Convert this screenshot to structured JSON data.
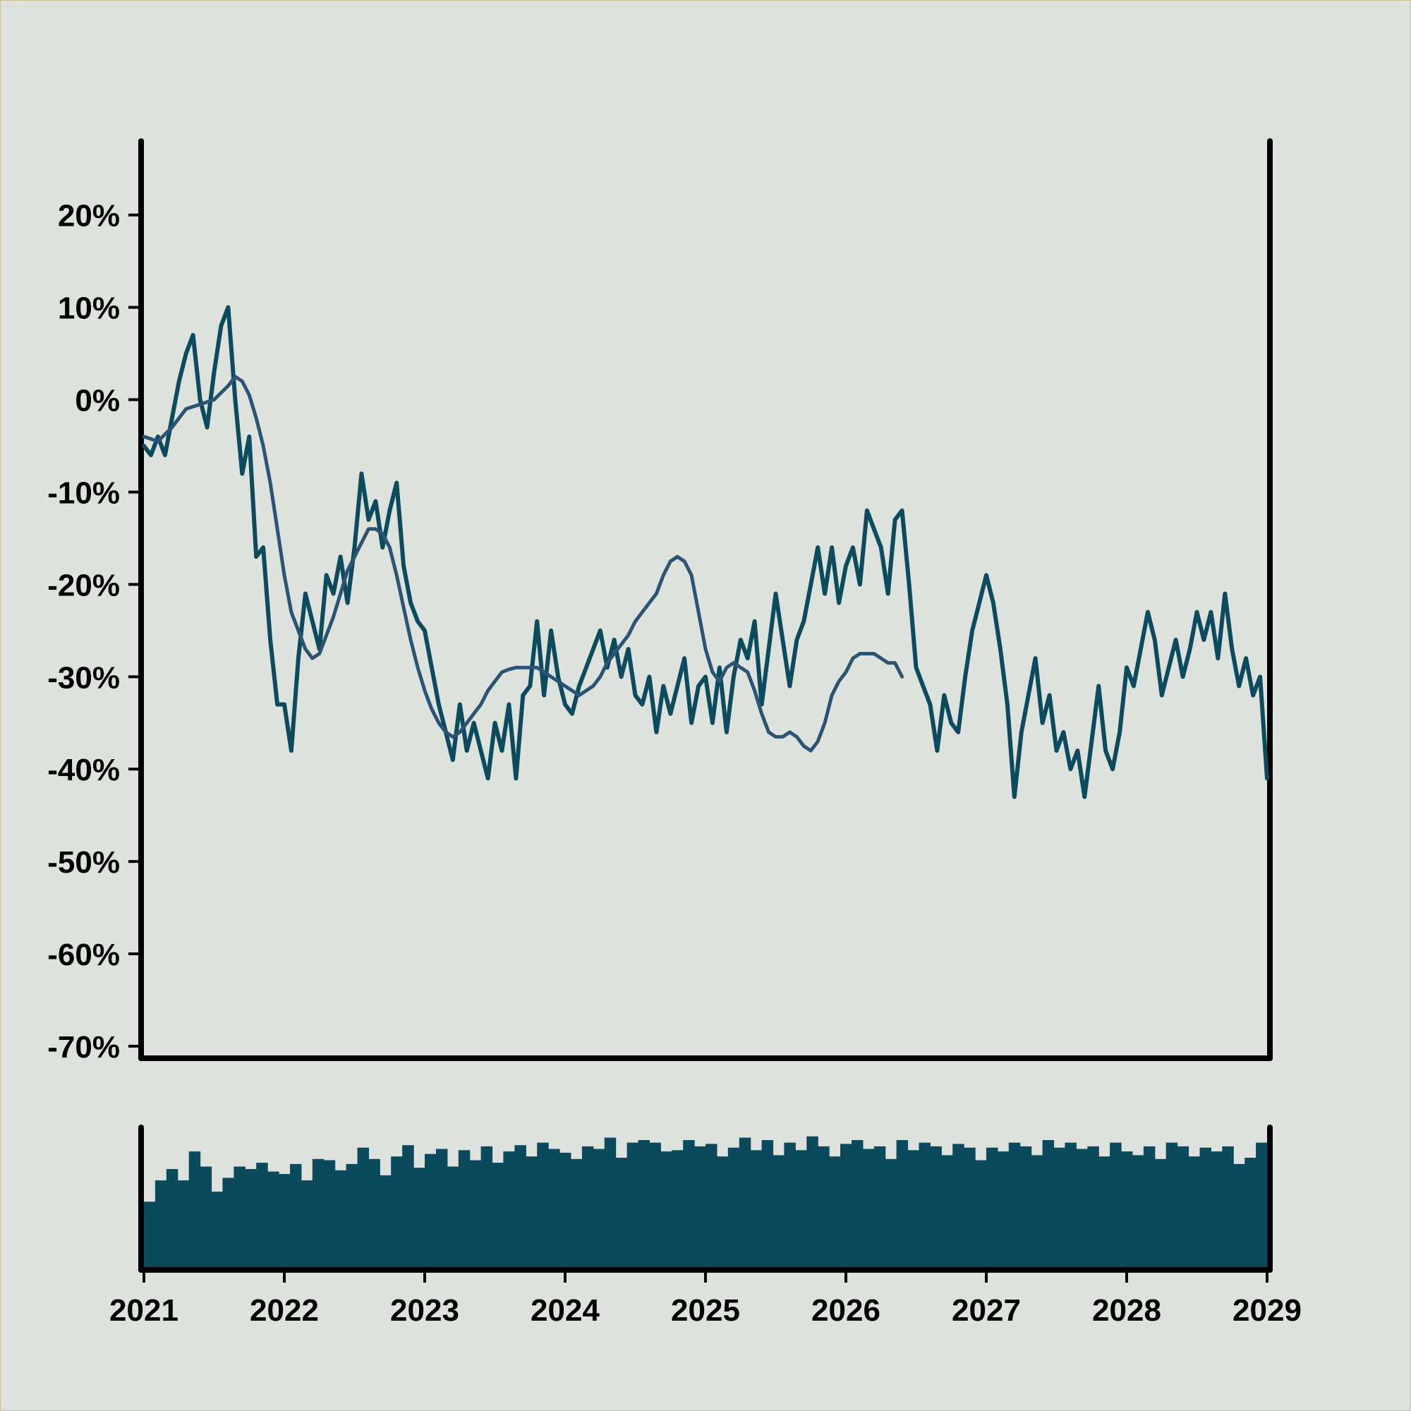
{
  "colors": {
    "background": "#dde2dc",
    "page_border": "#c9c39a",
    "axis": "#000000",
    "price_line": "#0c4a5e",
    "moving_average": "#2b5373",
    "volume": "#0a4a5c"
  },
  "chart_data": {
    "type": "line",
    "title": "",
    "xlabel": "",
    "ylabel": "",
    "x_ticks": [
      "2021",
      "2022",
      "2023",
      "2024",
      "2025",
      "2026",
      "2027",
      "2028",
      "2029"
    ],
    "y_ticks": [
      "20%",
      "10%",
      "0%",
      "-10%",
      "-20%",
      "-30%",
      "-40%",
      "-50%",
      "-60%",
      "-70%"
    ],
    "xlim": [
      2021,
      2029
    ],
    "ylim": [
      -71,
      28
    ],
    "grid": false,
    "legend": "none",
    "series": [
      {
        "values": [
          [
            2021.0,
            -5
          ],
          [
            2021.05,
            -6
          ],
          [
            2021.1,
            -4
          ],
          [
            2021.15,
            -6
          ],
          [
            2021.2,
            -2
          ],
          [
            2021.25,
            2
          ],
          [
            2021.3,
            5
          ],
          [
            2021.35,
            7
          ],
          [
            2021.4,
            0
          ],
          [
            2021.45,
            -3
          ],
          [
            2021.5,
            3
          ],
          [
            2021.55,
            8
          ],
          [
            2021.6,
            10
          ],
          [
            2021.65,
            0
          ],
          [
            2021.7,
            -8
          ],
          [
            2021.75,
            -4
          ],
          [
            2021.8,
            -17
          ],
          [
            2021.85,
            -16
          ],
          [
            2021.9,
            -26
          ],
          [
            2021.95,
            -33
          ],
          [
            2022.0,
            -33
          ],
          [
            2022.05,
            -38
          ],
          [
            2022.1,
            -28
          ],
          [
            2022.15,
            -21
          ],
          [
            2022.2,
            -24
          ],
          [
            2022.25,
            -27
          ],
          [
            2022.3,
            -19
          ],
          [
            2022.35,
            -21
          ],
          [
            2022.4,
            -17
          ],
          [
            2022.45,
            -22
          ],
          [
            2022.5,
            -16
          ],
          [
            2022.55,
            -8
          ],
          [
            2022.6,
            -13
          ],
          [
            2022.65,
            -11
          ],
          [
            2022.7,
            -16
          ],
          [
            2022.75,
            -12
          ],
          [
            2022.8,
            -9
          ],
          [
            2022.85,
            -18
          ],
          [
            2022.9,
            -22
          ],
          [
            2022.95,
            -24
          ],
          [
            2023.0,
            -25
          ],
          [
            2023.05,
            -29
          ],
          [
            2023.1,
            -33
          ],
          [
            2023.15,
            -36
          ],
          [
            2023.2,
            -39
          ],
          [
            2023.25,
            -33
          ],
          [
            2023.3,
            -38
          ],
          [
            2023.35,
            -35
          ],
          [
            2023.4,
            -38
          ],
          [
            2023.45,
            -41
          ],
          [
            2023.5,
            -35
          ],
          [
            2023.55,
            -38
          ],
          [
            2023.6,
            -33
          ],
          [
            2023.65,
            -41
          ],
          [
            2023.7,
            -32
          ],
          [
            2023.75,
            -31
          ],
          [
            2023.8,
            -24
          ],
          [
            2023.85,
            -32
          ],
          [
            2023.9,
            -25
          ],
          [
            2023.95,
            -30
          ],
          [
            2024.0,
            -33
          ],
          [
            2024.05,
            -34
          ],
          [
            2024.1,
            -31
          ],
          [
            2024.15,
            -29
          ],
          [
            2024.2,
            -27
          ],
          [
            2024.25,
            -25
          ],
          [
            2024.3,
            -29
          ],
          [
            2024.35,
            -26
          ],
          [
            2024.4,
            -30
          ],
          [
            2024.45,
            -27
          ],
          [
            2024.5,
            -32
          ],
          [
            2024.55,
            -33
          ],
          [
            2024.6,
            -30
          ],
          [
            2024.65,
            -36
          ],
          [
            2024.7,
            -31
          ],
          [
            2024.75,
            -34
          ],
          [
            2024.8,
            -31
          ],
          [
            2024.85,
            -28
          ],
          [
            2024.9,
            -35
          ],
          [
            2024.95,
            -31
          ],
          [
            2025.0,
            -30
          ],
          [
            2025.05,
            -35
          ],
          [
            2025.1,
            -29
          ],
          [
            2025.15,
            -36
          ],
          [
            2025.2,
            -30
          ],
          [
            2025.25,
            -26
          ],
          [
            2025.3,
            -28
          ],
          [
            2025.35,
            -24
          ],
          [
            2025.4,
            -33
          ],
          [
            2025.45,
            -27
          ],
          [
            2025.5,
            -21
          ],
          [
            2025.55,
            -26
          ],
          [
            2025.6,
            -31
          ],
          [
            2025.65,
            -26
          ],
          [
            2025.7,
            -24
          ],
          [
            2025.75,
            -20
          ],
          [
            2025.8,
            -16
          ],
          [
            2025.85,
            -21
          ],
          [
            2025.9,
            -16
          ],
          [
            2025.95,
            -22
          ],
          [
            2026.0,
            -18
          ],
          [
            2026.05,
            -16
          ],
          [
            2026.1,
            -20
          ],
          [
            2026.15,
            -12
          ],
          [
            2026.2,
            -14
          ],
          [
            2026.25,
            -16
          ],
          [
            2026.3,
            -21
          ],
          [
            2026.35,
            -13
          ],
          [
            2026.4,
            -12
          ],
          [
            2026.45,
            -20
          ],
          [
            2026.5,
            -29
          ],
          [
            2026.55,
            -31
          ],
          [
            2026.6,
            -33
          ],
          [
            2026.65,
            -38
          ],
          [
            2026.7,
            -32
          ],
          [
            2026.75,
            -35
          ],
          [
            2026.8,
            -36
          ],
          [
            2026.85,
            -30
          ],
          [
            2026.9,
            -25
          ],
          [
            2026.95,
            -22
          ],
          [
            2027.0,
            -19
          ],
          [
            2027.05,
            -22
          ],
          [
            2027.1,
            -27
          ],
          [
            2027.15,
            -33
          ],
          [
            2027.2,
            -43
          ],
          [
            2027.25,
            -36
          ],
          [
            2027.3,
            -32
          ],
          [
            2027.35,
            -28
          ],
          [
            2027.4,
            -35
          ],
          [
            2027.45,
            -32
          ],
          [
            2027.5,
            -38
          ],
          [
            2027.55,
            -36
          ],
          [
            2027.6,
            -40
          ],
          [
            2027.65,
            -38
          ],
          [
            2027.7,
            -43
          ],
          [
            2027.75,
            -37
          ],
          [
            2027.8,
            -31
          ],
          [
            2027.85,
            -38
          ],
          [
            2027.9,
            -40
          ],
          [
            2027.95,
            -36
          ],
          [
            2028.0,
            -29
          ],
          [
            2028.05,
            -31
          ],
          [
            2028.1,
            -27
          ],
          [
            2028.15,
            -23
          ],
          [
            2028.2,
            -26
          ],
          [
            2028.25,
            -32
          ],
          [
            2028.3,
            -29
          ],
          [
            2028.35,
            -26
          ],
          [
            2028.4,
            -30
          ],
          [
            2028.45,
            -27
          ],
          [
            2028.5,
            -23
          ],
          [
            2028.55,
            -26
          ],
          [
            2028.6,
            -23
          ],
          [
            2028.65,
            -28
          ],
          [
            2028.7,
            -21
          ],
          [
            2028.75,
            -27
          ],
          [
            2028.8,
            -31
          ],
          [
            2028.85,
            -28
          ],
          [
            2028.9,
            -32
          ],
          [
            2028.95,
            -30
          ],
          [
            2029.0,
            -41
          ]
        ]
      },
      {
        "values": [
          [
            2021.0,
            -4
          ],
          [
            2021.1,
            -4.5
          ],
          [
            2021.2,
            -3
          ],
          [
            2021.3,
            -1
          ],
          [
            2021.4,
            -0.5
          ],
          [
            2021.5,
            0
          ],
          [
            2021.6,
            1.5
          ],
          [
            2021.65,
            2.5
          ],
          [
            2021.7,
            2
          ],
          [
            2021.75,
            0.5
          ],
          [
            2021.8,
            -2
          ],
          [
            2021.85,
            -5
          ],
          [
            2021.9,
            -9
          ],
          [
            2021.95,
            -14
          ],
          [
            2022.0,
            -19
          ],
          [
            2022.05,
            -23
          ],
          [
            2022.1,
            -25
          ],
          [
            2022.15,
            -27
          ],
          [
            2022.2,
            -28
          ],
          [
            2022.25,
            -27.5
          ],
          [
            2022.3,
            -25.5
          ],
          [
            2022.35,
            -23.5
          ],
          [
            2022.4,
            -21
          ],
          [
            2022.45,
            -18.5
          ],
          [
            2022.5,
            -17
          ],
          [
            2022.55,
            -15.5
          ],
          [
            2022.6,
            -14
          ],
          [
            2022.65,
            -14
          ],
          [
            2022.7,
            -14.5
          ],
          [
            2022.75,
            -16
          ],
          [
            2022.8,
            -19
          ],
          [
            2022.85,
            -22.5
          ],
          [
            2022.9,
            -26
          ],
          [
            2022.95,
            -29
          ],
          [
            2023.0,
            -31.5
          ],
          [
            2023.05,
            -33.5
          ],
          [
            2023.1,
            -35
          ],
          [
            2023.15,
            -36
          ],
          [
            2023.2,
            -36.5
          ],
          [
            2023.25,
            -36
          ],
          [
            2023.3,
            -35
          ],
          [
            2023.35,
            -34
          ],
          [
            2023.4,
            -33
          ],
          [
            2023.45,
            -31.5
          ],
          [
            2023.5,
            -30.5
          ],
          [
            2023.55,
            -29.5
          ],
          [
            2023.6,
            -29.2
          ],
          [
            2023.65,
            -29
          ],
          [
            2023.7,
            -29
          ],
          [
            2023.75,
            -29
          ],
          [
            2023.8,
            -29
          ],
          [
            2023.85,
            -29.5
          ],
          [
            2023.9,
            -30
          ],
          [
            2023.95,
            -30.5
          ],
          [
            2024.0,
            -31
          ],
          [
            2024.05,
            -31.5
          ],
          [
            2024.1,
            -32
          ],
          [
            2024.15,
            -31.5
          ],
          [
            2024.2,
            -31
          ],
          [
            2024.25,
            -30
          ],
          [
            2024.3,
            -28.5
          ],
          [
            2024.35,
            -27.5
          ],
          [
            2024.4,
            -26.5
          ],
          [
            2024.45,
            -25.5
          ],
          [
            2024.5,
            -24
          ],
          [
            2024.55,
            -23
          ],
          [
            2024.6,
            -22
          ],
          [
            2024.65,
            -21
          ],
          [
            2024.7,
            -19
          ],
          [
            2024.75,
            -17.5
          ],
          [
            2024.8,
            -17
          ],
          [
            2024.85,
            -17.5
          ],
          [
            2024.9,
            -19
          ],
          [
            2024.95,
            -23
          ],
          [
            2025.0,
            -27
          ],
          [
            2025.05,
            -29.5
          ],
          [
            2025.1,
            -30.5
          ],
          [
            2025.15,
            -29
          ],
          [
            2025.2,
            -28.5
          ],
          [
            2025.25,
            -29
          ],
          [
            2025.3,
            -29.5
          ],
          [
            2025.35,
            -31.5
          ],
          [
            2025.4,
            -34
          ],
          [
            2025.45,
            -36
          ],
          [
            2025.5,
            -36.5
          ],
          [
            2025.55,
            -36.5
          ],
          [
            2025.6,
            -36
          ],
          [
            2025.65,
            -36.5
          ],
          [
            2025.7,
            -37.5
          ],
          [
            2025.75,
            -38
          ],
          [
            2025.8,
            -37
          ],
          [
            2025.85,
            -35
          ],
          [
            2025.9,
            -32
          ],
          [
            2025.95,
            -30.5
          ],
          [
            2026.0,
            -29.5
          ],
          [
            2026.05,
            -28
          ],
          [
            2026.1,
            -27.5
          ],
          [
            2026.15,
            -27.5
          ],
          [
            2026.2,
            -27.5
          ],
          [
            2026.25,
            -28
          ],
          [
            2026.3,
            -28.5
          ],
          [
            2026.35,
            -28.5
          ],
          [
            2026.4,
            -30
          ]
        ]
      }
    ],
    "volume": [
      52,
      69,
      78,
      69,
      92,
      80,
      60,
      71,
      80,
      78,
      83,
      76,
      74,
      82,
      69,
      86,
      85,
      77,
      82,
      95,
      86,
      73,
      88,
      97,
      79,
      90,
      94,
      80,
      93,
      85,
      96,
      83,
      92,
      97,
      88,
      99,
      94,
      91,
      86,
      96,
      94,
      103,
      87,
      99,
      101,
      99,
      92,
      93,
      101,
      96,
      98,
      88,
      95,
      103,
      93,
      101,
      89,
      99,
      93,
      104,
      96,
      88,
      98,
      101,
      94,
      96,
      86,
      101,
      93,
      99,
      96,
      89,
      98,
      95,
      85,
      95,
      92,
      99,
      96,
      89,
      101,
      95,
      99,
      94,
      96,
      88,
      99,
      92,
      89,
      96,
      86,
      99,
      96,
      88,
      95,
      92,
      96,
      82,
      87,
      99
    ]
  }
}
